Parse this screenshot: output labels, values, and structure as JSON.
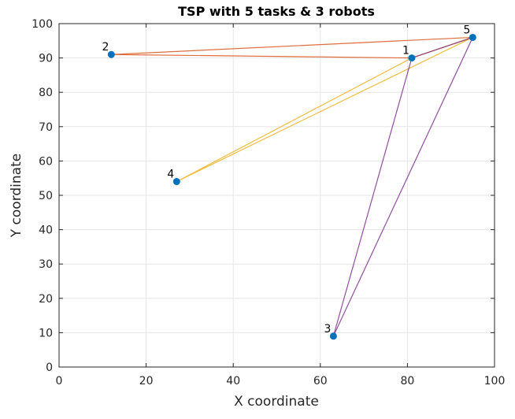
{
  "chart_data": {
    "type": "scatter",
    "title": "TSP with 5 tasks & 3 robots",
    "xlabel": "X coordinate",
    "ylabel": "Y coordinate",
    "xlim": [
      0,
      100
    ],
    "ylim": [
      0,
      100
    ],
    "xticks": [
      0,
      20,
      40,
      60,
      80,
      100
    ],
    "yticks": [
      0,
      10,
      20,
      30,
      40,
      50,
      60,
      70,
      80,
      90,
      100
    ],
    "grid": true,
    "points": [
      {
        "label": "1",
        "x": 81,
        "y": 90
      },
      {
        "label": "2",
        "x": 12,
        "y": 91
      },
      {
        "label": "3",
        "x": 63,
        "y": 9
      },
      {
        "label": "4",
        "x": 27,
        "y": 54
      },
      {
        "label": "5",
        "x": 95,
        "y": 96
      }
    ],
    "routes": [
      {
        "color": "#d95319",
        "path": [
          "5",
          "2",
          "1",
          "5"
        ]
      },
      {
        "color": "#edb120",
        "path": [
          "5",
          "4",
          "1",
          "5"
        ]
      },
      {
        "color": "#7e2f8e",
        "path": [
          "5",
          "3",
          "1",
          "5"
        ]
      }
    ],
    "marker_color": "#0072bd"
  }
}
